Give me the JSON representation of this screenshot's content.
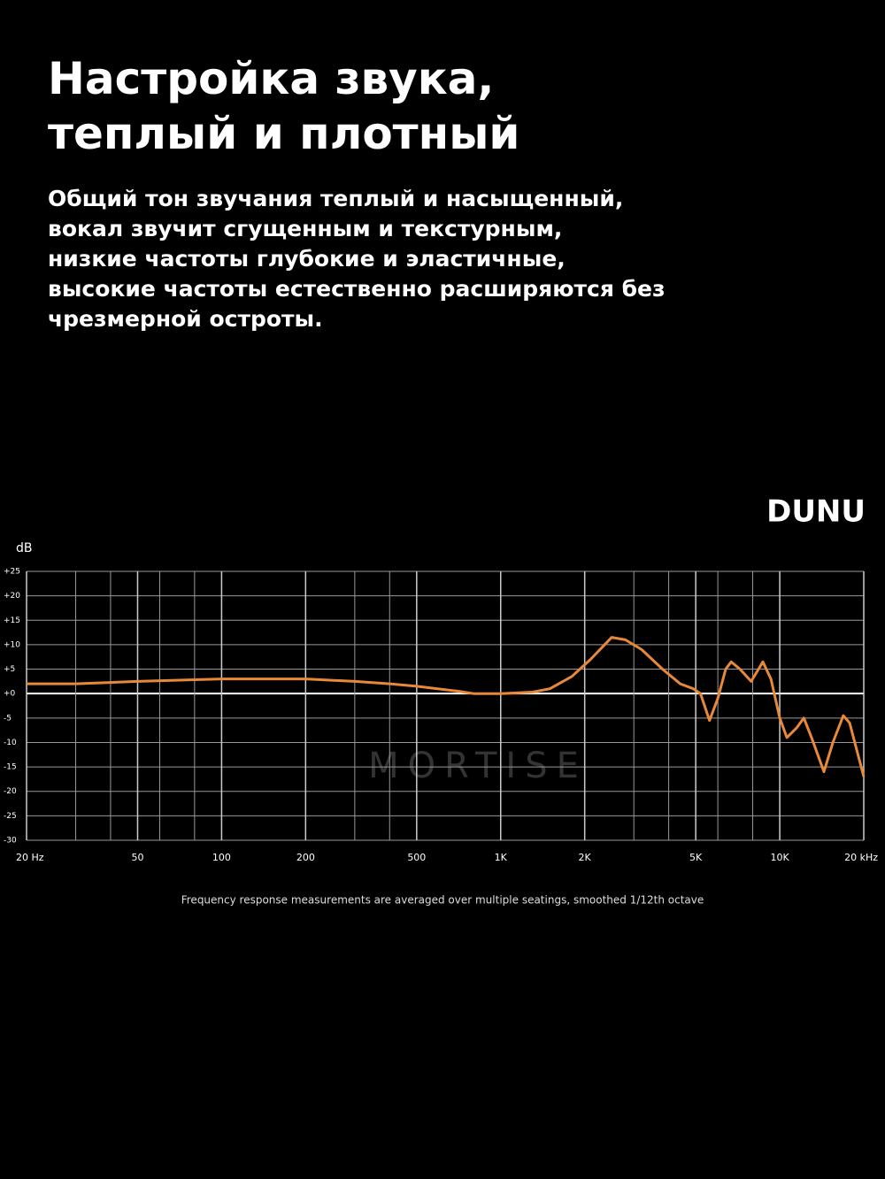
{
  "heading": [
    "Настройка звука,",
    "теплый и плотный"
  ],
  "description": [
    "Общий тон звучания теплый и насыщенный,",
    "вокал звучит сгущенным и текстурным,",
    "низкие частоты глубокие и эластичные,",
    "высокие частоты естественно расширяются без",
    "чрезмерной остроты."
  ],
  "brand": "DUNU",
  "watermark": "MORTISE",
  "chart_data": {
    "type": "line",
    "y_label": "dB",
    "caption": "Frequency response measurements are averaged over multiple seatings, smoothed 1/12th octave",
    "xscale": "log",
    "xlim": [
      20,
      20000
    ],
    "xticks": [
      {
        "value": 20,
        "label": "20 Hz"
      },
      50,
      100,
      200,
      500,
      {
        "value": 1000,
        "label": "1K"
      },
      {
        "value": 2000,
        "label": "2K"
      },
      {
        "value": 5000,
        "label": "5K"
      },
      {
        "value": 10000,
        "label": "10K"
      },
      {
        "value": 20000,
        "label": "20 kHz"
      }
    ],
    "xminor": [
      30,
      40,
      60,
      80,
      300,
      400,
      3000,
      4000,
      6000,
      8000
    ],
    "ylim": [
      -30,
      25
    ],
    "yticks": [
      {
        "value": 25,
        "label": "+25"
      },
      {
        "value": 20,
        "label": "+20"
      },
      {
        "value": 15,
        "label": "+15"
      },
      {
        "value": 10,
        "label": "+10"
      },
      {
        "value": 5,
        "label": "+5"
      },
      {
        "value": 0,
        "label": "+0"
      },
      -5,
      -10,
      -15,
      -20,
      -25,
      -30
    ],
    "grid": true,
    "series": [
      {
        "name": "Frequency response",
        "color": "#e8893a",
        "x": [
          20,
          30,
          50,
          100,
          200,
          300,
          400,
          500,
          700,
          800,
          1000,
          1300,
          1500,
          1800,
          2100,
          2500,
          2800,
          3200,
          3800,
          4400,
          4900,
          5200,
          5600,
          6000,
          6400,
          6700,
          7200,
          7900,
          8700,
          9300,
          10000,
          10600,
          11500,
          12200,
          13000,
          14400,
          15500,
          16900,
          17800,
          20000
        ],
        "values": [
          2,
          2,
          2.5,
          3,
          3,
          2.5,
          2,
          1.5,
          0.5,
          0,
          0,
          0.3,
          1,
          3.5,
          7,
          11.5,
          11,
          9,
          5,
          2,
          1,
          0,
          -5.5,
          -1,
          5,
          6.5,
          5,
          2.5,
          6.5,
          3,
          -5,
          -9,
          -7,
          -5,
          -9,
          -16,
          -10,
          -4.5,
          -6,
          -17
        ]
      }
    ]
  }
}
